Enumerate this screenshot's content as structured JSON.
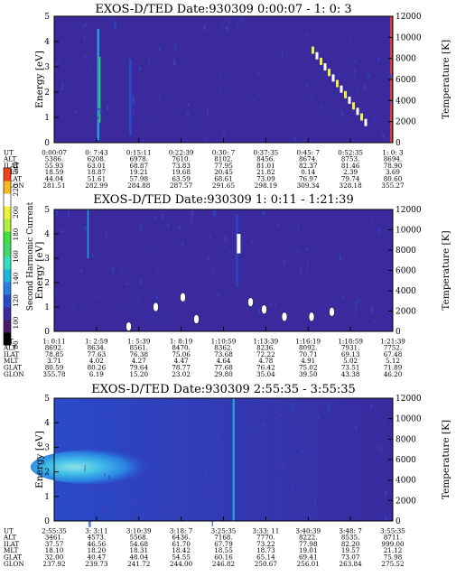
{
  "colors": {
    "background": "#3a2a9e",
    "colorbar": [
      "#000000",
      "#4a1a6a",
      "#3a2aa0",
      "#2a4ac8",
      "#2a7ee0",
      "#20b4e0",
      "#30e0c0",
      "#40d870",
      "#40e040",
      "#b0f040",
      "#f0f040",
      "#ffffff",
      "#f8b820",
      "#f04020"
    ]
  },
  "colorbar": {
    "label": "Second Harmonic Current",
    "ticks": [
      "80",
      "100",
      "120",
      "140",
      "160",
      "180",
      "200",
      "220",
      "240"
    ]
  },
  "row_labels": [
    "UT",
    "ALT",
    "ILAT",
    "MLT",
    "GLAT",
    "GLON"
  ],
  "chart_data": [
    {
      "type": "heatmap",
      "title": "EXOS-D/TED   Date:930309  0:00:07 - 1: 0: 3",
      "ylabel": "Energy [eV]",
      "y2label": "Temperature [K]",
      "ylim": [
        0,
        5
      ],
      "y2lim": [
        0,
        12000
      ],
      "yticks": [
        "0",
        "1",
        "2",
        "3",
        "4",
        "5"
      ],
      "y2ticks": [
        "0",
        "2000",
        "4000",
        "6000",
        "8000",
        "10000",
        "12000"
      ],
      "table": [
        [
          "0:00:07",
          "0: 7:43",
          "0:15:11",
          "0:22:39",
          "0:30: 7",
          "0:37:35",
          "0:45: 7",
          "0:52:35",
          "1: 0: 3"
        ],
        [
          "5386.",
          "6208.",
          "6978.",
          "7610.",
          "8102.",
          "8456.",
          "8674.",
          "8753.",
          "8694."
        ],
        [
          "55.93",
          "63.01",
          "68.87",
          "73.83",
          "77.95",
          "81.01",
          "82.37",
          "81.46",
          "78.90"
        ],
        [
          "18.59",
          "18.87",
          "19.21",
          "19.68",
          "20.45",
          "21.82",
          "0.14",
          "2.39",
          "3.69"
        ],
        [
          "44.04",
          "51.61",
          "57.98",
          "63.59",
          "68.61",
          "73.09",
          "76.97",
          "79.74",
          "80.60"
        ],
        [
          "281.51",
          "282.99",
          "284.88",
          "287.57",
          "291.65",
          "298.19",
          "309.34",
          "328.18",
          "355.27"
        ]
      ],
      "features": [
        {
          "t": 0.13,
          "e": [
            0.1,
            4.5
          ],
          "w": 0.006,
          "v": 140
        },
        {
          "t": 0.135,
          "e": [
            0.8,
            3.4
          ],
          "w": 0.004,
          "v": 180
        },
        {
          "t": 0.225,
          "e": [
            0.3,
            3.3
          ],
          "w": 0.008,
          "v": 120
        },
        {
          "t": 0.995,
          "e": [
            0.0,
            5.0
          ],
          "w": 0.006,
          "v": 240
        }
      ]
    },
    {
      "type": "heatmap",
      "title": "EXOS-D/TED   Date:930309  1: 0:11 - 1:21:39",
      "ylabel": "Energy [eV]",
      "y2label": "Temperature [K]",
      "ylim": [
        0,
        5
      ],
      "y2lim": [
        0,
        12000
      ],
      "yticks": [
        "0",
        "1",
        "2",
        "3",
        "4",
        "5"
      ],
      "y2ticks": [
        "0",
        "2000",
        "4000",
        "6000",
        "8000",
        "10000",
        "12000"
      ],
      "table": [
        [
          "1: 0:11",
          "1: 2:59",
          "1: 5:39",
          "1: 8:19",
          "1:10:59",
          "1:13:39",
          "1:16:19",
          "1:18:59",
          "1:21:39"
        ],
        [
          "8692.",
          "8634.",
          "8561.",
          "8470.",
          "8362.",
          "8236.",
          "8092.",
          "7931.",
          "7752."
        ],
        [
          "78.85",
          "77.63",
          "76.38",
          "75.06",
          "73.68",
          "72.22",
          "70.71",
          "69.13",
          "67.48"
        ],
        [
          "3.71",
          "4.02",
          "4.27",
          "4.47",
          "4.64",
          "4.78",
          "4.91",
          "5.02",
          "5.12"
        ],
        [
          "80.59",
          "80.26",
          "79.64",
          "78.77",
          "77.68",
          "76.42",
          "75.02",
          "73.51",
          "71.89"
        ],
        [
          "355.78",
          "6.19",
          "15.20",
          "23.02",
          "29.80",
          "35.04",
          "39.50",
          "43.38",
          "46.20"
        ]
      ],
      "features": [
        {
          "t": 0.1,
          "e": [
            3.0,
            5.0
          ],
          "w": 0.004,
          "v": 140
        },
        {
          "t": 0.54,
          "e": [
            1.8,
            4.8
          ],
          "w": 0.006,
          "v": 120
        }
      ]
    },
    {
      "type": "heatmap",
      "title": "EXOS-D/TED   Date:930309  2:55:35 - 3:55:35",
      "ylabel": "Energy [eV]",
      "y2label": "Temperature [K]",
      "ylim": [
        0,
        5
      ],
      "y2lim": [
        0,
        12000
      ],
      "yticks": [
        "0",
        "1",
        "2",
        "3",
        "4",
        "5"
      ],
      "y2ticks": [
        "0",
        "2000",
        "4000",
        "6000",
        "8000",
        "10000",
        "12000"
      ],
      "table": [
        [
          "2:55:35",
          "3: 3:11",
          "3:10:39",
          "3:18: 7",
          "3:25:35",
          "3:33: 11",
          "3:40:39",
          "3:48: 7",
          "3:55:35"
        ],
        [
          "3461.",
          "4573.",
          "5568.",
          "6436.",
          "7168.",
          "7770.",
          "8222.",
          "8535.",
          "8711."
        ],
        [
          "37.57",
          "46.56",
          "54.68",
          "61.70",
          "67.79",
          "73.22",
          "77.98",
          "82.20",
          "999.00"
        ],
        [
          "18.10",
          "18.20",
          "18.31",
          "18.42",
          "18.55",
          "18.73",
          "19.01",
          "19.57",
          "21.12"
        ],
        [
          "32.00",
          "40.47",
          "48.04",
          "54.55",
          "60.16",
          "65.14",
          "69.41",
          "73.07",
          "75.98"
        ],
        [
          "237.92",
          "239.73",
          "241.72",
          "244.00",
          "246.82",
          "250.67",
          "256.01",
          "263.84",
          "275.52"
        ]
      ],
      "features": [
        {
          "t": 0.01,
          "e": [
            1.5,
            2.9
          ],
          "w": 0.2,
          "v": 160
        },
        {
          "t": 0.53,
          "e": [
            0.0,
            5.0
          ],
          "w": 0.006,
          "v": 140
        }
      ]
    }
  ]
}
